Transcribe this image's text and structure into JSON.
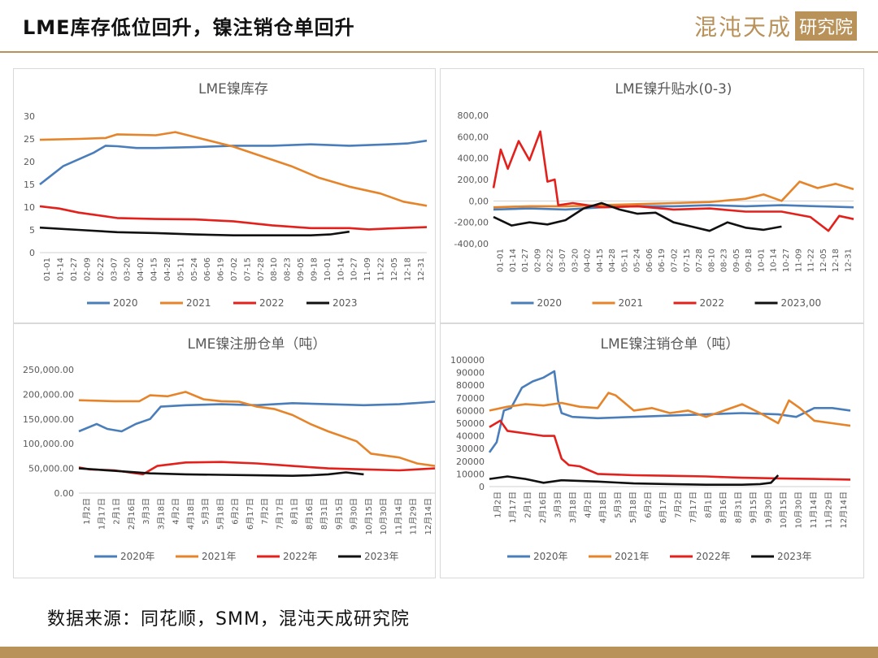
{
  "header": {
    "title": "LME库存低位回升，镍注销仓单回升",
    "logo_text": "混沌天成",
    "logo_box": "研究院"
  },
  "source": "数据来源：同花顺，SMM，混沌天成研究院",
  "colors": {
    "2020": "#4a7ebb",
    "2021": "#e6842a",
    "2022": "#e3201b",
    "2023": "#111111",
    "accent": "#b9925a"
  },
  "chart_data": [
    {
      "type": "line",
      "title": "LME镍库存",
      "ylim": [
        0,
        30
      ],
      "yticks": [
        "0",
        "5",
        "10",
        "15",
        "20",
        "25",
        "30"
      ],
      "xticks": [
        "01-01",
        "01-14",
        "01-27",
        "02-09",
        "02-22",
        "03-07",
        "03-20",
        "04-02",
        "04-15",
        "04-28",
        "05-11",
        "05-24",
        "06-06",
        "06-19",
        "07-02",
        "07-15",
        "07-28",
        "08-10",
        "08-23",
        "09-05",
        "09-18",
        "10-01",
        "10-14",
        "10-27",
        "11-09",
        "11-22",
        "12-05",
        "12-18",
        "12-31"
      ],
      "legend": [
        "2020",
        "2021",
        "2022",
        "2023"
      ],
      "series": [
        {
          "name": "2020",
          "x": [
            0,
            0.03,
            0.06,
            0.1,
            0.14,
            0.17,
            0.2,
            0.25,
            0.3,
            0.4,
            0.5,
            0.6,
            0.7,
            0.8,
            0.9,
            0.95,
            1.0
          ],
          "values": [
            15,
            17,
            19,
            20.5,
            22,
            23.5,
            23.4,
            23,
            23,
            23.2,
            23.5,
            23.5,
            23.8,
            23.5,
            23.8,
            24,
            24.6
          ]
        },
        {
          "name": "2021",
          "x": [
            0,
            0.1,
            0.17,
            0.2,
            0.3,
            0.35,
            0.42,
            0.5,
            0.58,
            0.65,
            0.72,
            0.8,
            0.88,
            0.94,
            1.0
          ],
          "values": [
            24.8,
            25,
            25.2,
            26,
            25.8,
            26.5,
            25,
            23.3,
            21,
            19,
            16.5,
            14.5,
            13,
            11.2,
            10.3
          ]
        },
        {
          "name": "2022",
          "x": [
            0,
            0.05,
            0.1,
            0.2,
            0.3,
            0.4,
            0.5,
            0.6,
            0.7,
            0.8,
            0.85,
            0.9,
            1.0
          ],
          "values": [
            10.2,
            9.7,
            8.8,
            7.6,
            7.4,
            7.3,
            6.9,
            6,
            5.4,
            5.4,
            5.1,
            5.3,
            5.6
          ]
        },
        {
          "name": "2023",
          "x": [
            0,
            0.1,
            0.2,
            0.3,
            0.4,
            0.5,
            0.6,
            0.7,
            0.75,
            0.8
          ],
          "values": [
            5.5,
            5,
            4.5,
            4.3,
            4,
            3.8,
            3.8,
            3.8,
            4,
            4.6
          ]
        }
      ]
    },
    {
      "type": "line",
      "title": "LME镍升贴水(0-3)",
      "ylim": [
        -400,
        800
      ],
      "yticks": [
        "-400,00",
        "-200,00",
        "0,00",
        "200,00",
        "400,00",
        "600,00",
        "800,00"
      ],
      "xticks": [
        "01-01",
        "01-14",
        "01-27",
        "02-09",
        "02-22",
        "03-07",
        "03-20",
        "04-02",
        "04-15",
        "04-28",
        "05-11",
        "05-24",
        "06-06",
        "06-19",
        "07-02",
        "07-15",
        "07-28",
        "08-10",
        "08-23",
        "09-05",
        "09-18",
        "10-01",
        "10-14",
        "10-27",
        "11-09",
        "11-22",
        "12-05",
        "12-18",
        "12-31"
      ],
      "legend": [
        "2020",
        "2021",
        "2022",
        "2023,00"
      ],
      "series": [
        {
          "name": "2020",
          "x": [
            0,
            0.1,
            0.2,
            0.3,
            0.4,
            0.5,
            0.6,
            0.7,
            0.8,
            0.9,
            1.0
          ],
          "values": [
            -80,
            -70,
            -80,
            -60,
            -50,
            -50,
            -40,
            -50,
            -40,
            -50,
            -60
          ]
        },
        {
          "name": "2021",
          "x": [
            0,
            0.1,
            0.2,
            0.3,
            0.4,
            0.5,
            0.6,
            0.7,
            0.75,
            0.8,
            0.85,
            0.9,
            0.95,
            1.0
          ],
          "values": [
            -60,
            -50,
            -50,
            -40,
            -30,
            -20,
            -10,
            20,
            60,
            0,
            180,
            120,
            160,
            110
          ]
        },
        {
          "name": "2022",
          "x": [
            0,
            0.02,
            0.04,
            0.07,
            0.1,
            0.13,
            0.15,
            0.17,
            0.18,
            0.22,
            0.3,
            0.4,
            0.5,
            0.6,
            0.7,
            0.8,
            0.88,
            0.93,
            0.96,
            1.0
          ],
          "values": [
            120,
            480,
            300,
            560,
            380,
            650,
            180,
            200,
            -40,
            -20,
            -60,
            -50,
            -80,
            -70,
            -100,
            -100,
            -150,
            -280,
            -140,
            -170
          ]
        },
        {
          "name": "2023,00",
          "x": [
            0,
            0.05,
            0.1,
            0.15,
            0.2,
            0.25,
            0.3,
            0.35,
            0.4,
            0.45,
            0.5,
            0.55,
            0.6,
            0.65,
            0.7,
            0.75,
            0.8
          ],
          "values": [
            -150,
            -230,
            -200,
            -220,
            -180,
            -70,
            -20,
            -80,
            -120,
            -110,
            -200,
            -240,
            -280,
            -200,
            -250,
            -270,
            -240
          ]
        }
      ]
    },
    {
      "type": "line",
      "title": "LME镍注册仓单（吨）",
      "ylim": [
        0,
        250000
      ],
      "yticks": [
        "0.00",
        "50,000.00",
        "100,000.00",
        "150,000.00",
        "200,000.00",
        "250,000.00"
      ],
      "xticks": [
        "1月2日",
        "1月17日",
        "2月1日",
        "2月16日",
        "3月3日",
        "3月18日",
        "4月2日",
        "4月18日",
        "5月3日",
        "5月18日",
        "6月2日",
        "6月17日",
        "7月2日",
        "7月17日",
        "8月1日",
        "8月16日",
        "8月31日",
        "9月15日",
        "9月30日",
        "10月15日",
        "10月30日",
        "11月14日",
        "11月29日",
        "12月14日"
      ],
      "legend": [
        "2020年",
        "2021年",
        "2022年",
        "2023年"
      ],
      "series": [
        {
          "name": "2020年",
          "x": [
            0,
            0.05,
            0.08,
            0.12,
            0.16,
            0.2,
            0.23,
            0.3,
            0.4,
            0.5,
            0.6,
            0.7,
            0.8,
            0.9,
            1.0
          ],
          "values": [
            125000,
            140000,
            130000,
            125000,
            140000,
            150000,
            175000,
            178000,
            180000,
            178000,
            182000,
            180000,
            178000,
            180000,
            185000
          ]
        },
        {
          "name": "2021年",
          "x": [
            0,
            0.1,
            0.17,
            0.2,
            0.25,
            0.3,
            0.35,
            0.4,
            0.45,
            0.5,
            0.55,
            0.6,
            0.65,
            0.7,
            0.78,
            0.82,
            0.9,
            0.95,
            1.0
          ],
          "values": [
            188000,
            186000,
            186000,
            198000,
            196000,
            205000,
            190000,
            186000,
            185000,
            175000,
            170000,
            158000,
            140000,
            125000,
            105000,
            80000,
            72000,
            60000,
            55000
          ]
        },
        {
          "name": "2022年",
          "x": [
            0,
            0.03,
            0.1,
            0.18,
            0.22,
            0.3,
            0.4,
            0.5,
            0.6,
            0.7,
            0.8,
            0.9,
            1.0
          ],
          "values": [
            52000,
            48000,
            46000,
            38000,
            55000,
            62000,
            63000,
            60000,
            55000,
            50000,
            48000,
            46000,
            50000
          ]
        },
        {
          "name": "2023年",
          "x": [
            0,
            0.1,
            0.2,
            0.3,
            0.4,
            0.5,
            0.6,
            0.65,
            0.7,
            0.75,
            0.8
          ],
          "values": [
            50000,
            45000,
            40000,
            38000,
            37000,
            36000,
            35000,
            36000,
            38000,
            42000,
            38000
          ]
        }
      ]
    },
    {
      "type": "line",
      "title": "LME镍注销仓单（吨）",
      "ylim": [
        0,
        100000
      ],
      "yticks": [
        "0",
        "10000",
        "20000",
        "30000",
        "40000",
        "50000",
        "60000",
        "70000",
        "80000",
        "90000",
        "100000"
      ],
      "xticks": [
        "1月2日",
        "1月17日",
        "2月1日",
        "2月16日",
        "3月3日",
        "3月18日",
        "4月2日",
        "4月18日",
        "5月3日",
        "5月18日",
        "6月2日",
        "6月17日",
        "7月2日",
        "7月17日",
        "8月1日",
        "8月16日",
        "8月31日",
        "9月15日",
        "9月30日",
        "10月15日",
        "10月30日",
        "11月14日",
        "11月29日",
        "12月14日"
      ],
      "legend": [
        "2020年",
        "2021年",
        "2022年",
        "2023年"
      ],
      "series": [
        {
          "name": "2020年",
          "x": [
            0,
            0.02,
            0.04,
            0.06,
            0.09,
            0.12,
            0.15,
            0.18,
            0.19,
            0.2,
            0.23,
            0.3,
            0.4,
            0.5,
            0.6,
            0.7,
            0.8,
            0.85,
            0.9,
            0.95,
            1.0
          ],
          "values": [
            27000,
            35000,
            60000,
            62000,
            78000,
            83000,
            86000,
            91000,
            68000,
            58000,
            55000,
            54000,
            55000,
            56000,
            57000,
            58000,
            57000,
            55000,
            62000,
            62000,
            60000
          ]
        },
        {
          "name": "2021年",
          "x": [
            0,
            0.05,
            0.1,
            0.15,
            0.2,
            0.25,
            0.3,
            0.33,
            0.35,
            0.4,
            0.45,
            0.5,
            0.55,
            0.6,
            0.65,
            0.7,
            0.75,
            0.8,
            0.83,
            0.86,
            0.9,
            0.95,
            1.0
          ],
          "values": [
            60000,
            63000,
            65000,
            64000,
            66000,
            63000,
            62000,
            74000,
            72000,
            60000,
            62000,
            58000,
            60000,
            55000,
            60000,
            65000,
            58000,
            50000,
            68000,
            62000,
            52000,
            50000,
            48000
          ]
        },
        {
          "name": "2022年",
          "x": [
            0,
            0.03,
            0.05,
            0.1,
            0.15,
            0.18,
            0.2,
            0.22,
            0.25,
            0.3,
            0.4,
            0.5,
            0.6,
            0.7,
            0.8,
            0.9,
            1.0
          ],
          "values": [
            47000,
            52000,
            44000,
            42000,
            40000,
            40000,
            22000,
            17000,
            16000,
            10000,
            9000,
            8500,
            8000,
            7000,
            6500,
            6000,
            5500
          ]
        },
        {
          "name": "2023年",
          "x": [
            0,
            0.05,
            0.1,
            0.15,
            0.2,
            0.3,
            0.4,
            0.5,
            0.6,
            0.7,
            0.75,
            0.78,
            0.8
          ],
          "values": [
            6000,
            8000,
            6000,
            3000,
            5000,
            4000,
            2500,
            2000,
            1500,
            1500,
            2000,
            3000,
            9000
          ]
        }
      ]
    }
  ]
}
